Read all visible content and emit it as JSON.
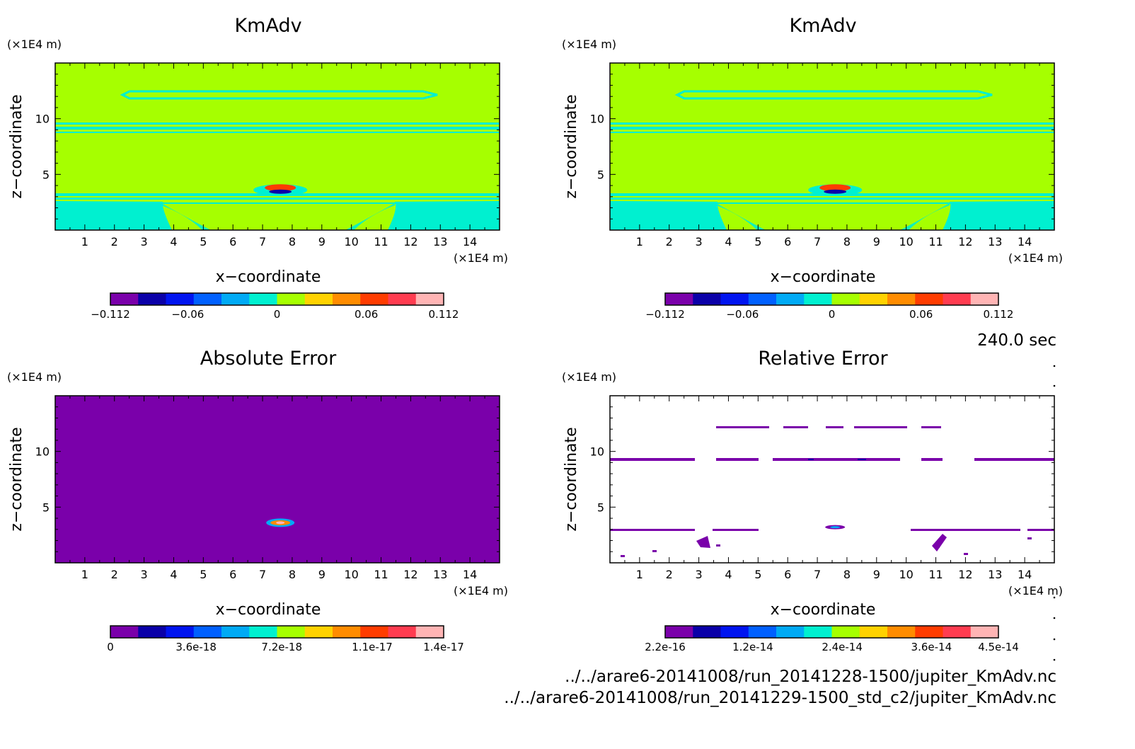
{
  "time_label": "240.0 sec",
  "files": [
    "../../arare6-20141008/run_20141228-1500/jupiter_KmAdv.nc",
    "../../arare6-20141008/run_20141229-1500_std_c2/jupiter_KmAdv.nc"
  ],
  "colors": {
    "palette": [
      "#7a00aa",
      "#0a00a8",
      "#0014f0",
      "#0060ff",
      "#00aaf5",
      "#00f0d0",
      "#a6ff00",
      "#ffd200",
      "#ff8c00",
      "#ff3c00",
      "#ff3c50",
      "#ffb4b4"
    ],
    "background_field": "#a6ff00",
    "error_field": "#7a00aa"
  },
  "chart_data": [
    {
      "type": "heatmap",
      "title": "KmAdv",
      "xlabel": "x-coordinate",
      "ylabel": "z-coordinate",
      "x_unit": "(x1E4 m)",
      "y_unit": "(x1E4 m)",
      "xlim": [
        0,
        15
      ],
      "ylim": [
        0,
        15
      ],
      "x_ticks": [
        1,
        2,
        3,
        4,
        5,
        6,
        7,
        8,
        9,
        10,
        11,
        12,
        13,
        14
      ],
      "y_ticks": [
        5,
        10
      ],
      "colorbar": {
        "min": -0.112,
        "max": 0.112,
        "labels": [
          "-0.112",
          "-0.06",
          "0",
          "0.06",
          "0.112"
        ],
        "label_values": [
          -0.112,
          -0.06,
          0,
          0.06,
          0.112
        ]
      },
      "field": "kmadv"
    },
    {
      "type": "heatmap",
      "title": "KmAdv",
      "xlabel": "x-coordinate",
      "ylabel": "z-coordinate",
      "x_unit": "(x1E4 m)",
      "y_unit": "(x1E4 m)",
      "xlim": [
        0,
        15
      ],
      "ylim": [
        0,
        15
      ],
      "x_ticks": [
        1,
        2,
        3,
        4,
        5,
        6,
        7,
        8,
        9,
        10,
        11,
        12,
        13,
        14
      ],
      "y_ticks": [
        5,
        10
      ],
      "colorbar": {
        "min": -0.112,
        "max": 0.112,
        "labels": [
          "-0.112",
          "-0.06",
          "0",
          "0.06",
          "0.112"
        ],
        "label_values": [
          -0.112,
          -0.06,
          0,
          0.06,
          0.112
        ]
      },
      "field": "kmadv"
    },
    {
      "type": "heatmap",
      "title": "Absolute Error",
      "xlabel": "x-coordinate",
      "ylabel": "z-coordinate",
      "x_unit": "(x1E4 m)",
      "y_unit": "(x1E4 m)",
      "xlim": [
        0,
        15
      ],
      "ylim": [
        0,
        15
      ],
      "x_ticks": [
        1,
        2,
        3,
        4,
        5,
        6,
        7,
        8,
        9,
        10,
        11,
        12,
        13,
        14
      ],
      "y_ticks": [
        5,
        10
      ],
      "colorbar": {
        "min": 0,
        "max": 1.4e-17,
        "labels": [
          "0",
          "3.6e-18",
          "7.2e-18",
          "1.1e-17",
          "1.4e-17"
        ],
        "label_values": [
          0,
          3.6e-18,
          7.2e-18,
          1.1e-17,
          1.4e-17
        ]
      },
      "field": "abs_error"
    },
    {
      "type": "heatmap",
      "title": "Relative Error",
      "xlabel": "x-coordinate",
      "ylabel": "z-coordinate",
      "x_unit": "(x1E4 m)",
      "y_unit": "(x1E4 m)",
      "xlim": [
        0,
        15
      ],
      "ylim": [
        0,
        15
      ],
      "x_ticks": [
        1,
        2,
        3,
        4,
        5,
        6,
        7,
        8,
        9,
        10,
        11,
        12,
        13,
        14
      ],
      "y_ticks": [
        5,
        10
      ],
      "colorbar": {
        "min": 2.2e-16,
        "max": 4.5e-14,
        "labels": [
          "2.2e-16",
          "1.2e-14",
          "2.4e-14",
          "3.6e-14",
          "4.5e-14"
        ],
        "label_values": [
          2.2e-16,
          1.2e-14,
          2.4e-14,
          3.6e-14,
          4.5e-14
        ]
      },
      "field": "rel_error"
    }
  ]
}
